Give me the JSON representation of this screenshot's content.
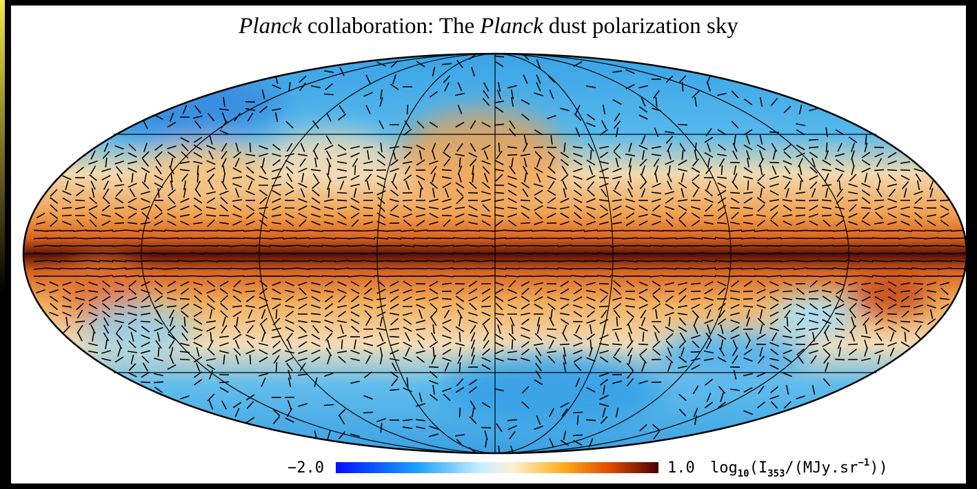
{
  "title": [
    {
      "text": "Planck",
      "italic": true
    },
    {
      "text": "collaboration: The",
      "italic": false
    },
    {
      "text": "Planck",
      "italic": true
    },
    {
      "text": "dust polarization sky",
      "italic": false
    }
  ],
  "colorbar": {
    "min": {
      "value": -2,
      "label": "−2.0"
    },
    "max": {
      "value": 1,
      "label": "1.0"
    },
    "label": [
      {
        "text": "log",
        "style": "normal"
      },
      {
        "text": "10",
        "style": "sub"
      },
      {
        "text": "(I",
        "style": "normal"
      },
      {
        "text": "353",
        "style": "sub"
      },
      {
        "text": "/(MJy.sr",
        "style": "normal"
      },
      {
        "text": "−1",
        "style": "sup"
      },
      {
        "text": "))",
        "style": "normal"
      }
    ]
  }
}
